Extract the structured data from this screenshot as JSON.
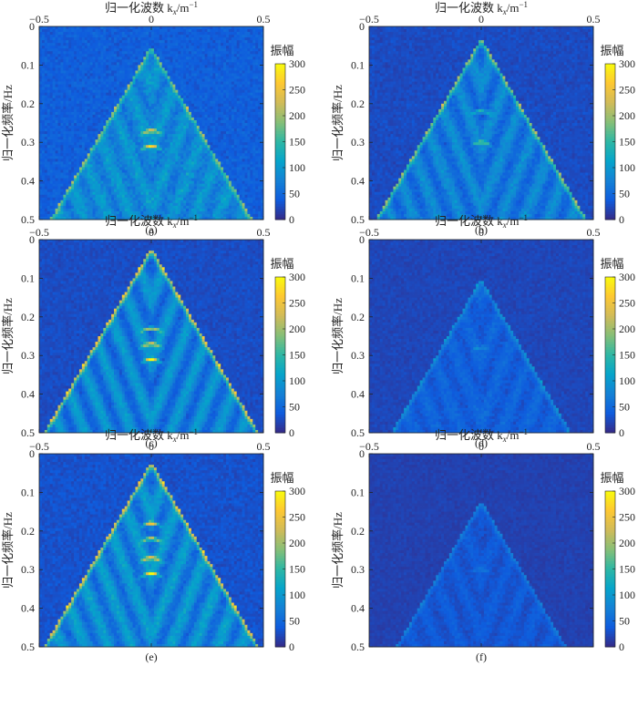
{
  "chart_data": [
    {
      "panel": "(a)",
      "type": "heatmap",
      "title": "",
      "xlabel": "归一化波数 k",
      "xlabel_sub": "x",
      "xlabel_unit": "/m",
      "xlabel_sup": "−1",
      "ylabel": "归一化频率/Hz",
      "xlim": [
        -0.5,
        0.5
      ],
      "ylim": [
        0,
        0.5
      ],
      "xticks": [
        "−0.5",
        "0",
        "0.5"
      ],
      "yticks": [
        "0",
        "0.1",
        "0.2",
        "0.3",
        "0.4",
        "0.5"
      ],
      "colorbar_label": "振幅",
      "clim": [
        0,
        300
      ],
      "cticks": [
        "0",
        "50",
        "100",
        "150",
        "200",
        "250",
        "300"
      ],
      "pattern": {
        "apex": 0.05,
        "edge_intensity": 110,
        "center_peaks": [
          0.27,
          0.31
        ],
        "center_peak_value": 240,
        "background": 35,
        "noise": 30
      }
    },
    {
      "panel": "(b)",
      "type": "heatmap",
      "title": "",
      "xlabel": "归一化波数 k",
      "xlabel_sub": "x",
      "xlabel_unit": "/m",
      "xlabel_sup": "−1",
      "ylabel": "归一化频率/Hz",
      "xlim": [
        -0.5,
        0.5
      ],
      "ylim": [
        0,
        0.5
      ],
      "xticks": [
        "−0.5",
        "0",
        "0.5"
      ],
      "yticks": [
        "0",
        "0.1",
        "0.2",
        "0.3",
        "0.4",
        "0.5"
      ],
      "colorbar_label": "振幅",
      "clim": [
        0,
        300
      ],
      "cticks": [
        "0",
        "50",
        "100",
        "150",
        "200",
        "250",
        "300"
      ],
      "pattern": {
        "apex": 0.03,
        "edge_intensity": 130,
        "center_peaks": [
          0.22,
          0.3
        ],
        "center_peak_value": 160,
        "background": 20,
        "noise": 25
      }
    },
    {
      "panel": "(c)",
      "type": "heatmap",
      "title": "",
      "xlabel": "归一化波数 k",
      "xlabel_sub": "x",
      "xlabel_unit": "/m",
      "xlabel_sup": "−1",
      "ylabel": "归一化频率/Hz",
      "xlim": [
        -0.5,
        0.5
      ],
      "ylim": [
        0,
        0.5
      ],
      "xticks": [
        "−0.5",
        "0",
        "0.5"
      ],
      "yticks": [
        "0",
        "0.1",
        "0.2",
        "0.3",
        "0.4",
        "0.5"
      ],
      "colorbar_label": "振幅",
      "clim": [
        0,
        300
      ],
      "cticks": [
        "0",
        "50",
        "100",
        "150",
        "200",
        "250",
        "300"
      ],
      "pattern": {
        "apex": 0.02,
        "edge_intensity": 180,
        "center_peaks": [
          0.23,
          0.27,
          0.31
        ],
        "center_peak_value": 250,
        "background": 22,
        "noise": 20
      }
    },
    {
      "panel": "(d)",
      "type": "heatmap",
      "title": "",
      "xlabel": "归一化波数 k",
      "xlabel_sub": "x",
      "xlabel_unit": "/m",
      "xlabel_sup": "−1",
      "ylabel": "归一化频率/Hz",
      "xlim": [
        -0.5,
        0.5
      ],
      "ylim": [
        0,
        0.5
      ],
      "xticks": [
        "−0.5",
        "0",
        "0.5"
      ],
      "yticks": [
        "0",
        "0.1",
        "0.2",
        "0.3",
        "0.4",
        "0.5"
      ],
      "colorbar_label": "振幅",
      "clim": [
        0,
        300
      ],
      "cticks": [
        "0",
        "50",
        "100",
        "150",
        "200",
        "250",
        "300"
      ],
      "pattern": {
        "apex": 0.1,
        "edge_intensity": 50,
        "center_peaks": [
          0.28
        ],
        "center_peak_value": 70,
        "background": 18,
        "noise": 15
      }
    },
    {
      "panel": "(e)",
      "type": "heatmap",
      "title": "",
      "xlabel": "归一化波数 k",
      "xlabel_sub": "x",
      "xlabel_unit": "/m",
      "xlabel_sup": "−1",
      "ylabel": "归一化频率/Hz",
      "xlim": [
        -0.5,
        0.5
      ],
      "ylim": [
        0,
        0.5
      ],
      "xticks": [
        "−0.5",
        "0",
        "0.5"
      ],
      "yticks": [
        "0",
        "0.1",
        "0.2",
        "0.3",
        "0.4",
        "0.5"
      ],
      "colorbar_label": "振幅",
      "clim": [
        0,
        300
      ],
      "cticks": [
        "0",
        "50",
        "100",
        "150",
        "200",
        "250",
        "300"
      ],
      "pattern": {
        "apex": 0.02,
        "edge_intensity": 170,
        "center_peaks": [
          0.18,
          0.22,
          0.27,
          0.31
        ],
        "center_peak_value": 270,
        "background": 25,
        "noise": 25
      }
    },
    {
      "panel": "(f)",
      "type": "heatmap",
      "title": "",
      "xlabel": "归一化波数 k",
      "xlabel_sub": "x",
      "xlabel_unit": "/m",
      "xlabel_sup": "−1",
      "ylabel": "归一化频率/Hz",
      "xlim": [
        -0.5,
        0.5
      ],
      "ylim": [
        0,
        0.5
      ],
      "xticks": [
        "−0.5",
        "0",
        "0.5"
      ],
      "yticks": [
        "0",
        "0.1",
        "0.2",
        "0.3",
        "0.4",
        "0.5"
      ],
      "colorbar_label": "振幅",
      "clim": [
        0,
        300
      ],
      "cticks": [
        "0",
        "50",
        "100",
        "150",
        "200",
        "250",
        "300"
      ],
      "pattern": {
        "apex": 0.12,
        "edge_intensity": 40,
        "center_peaks": [
          0.3
        ],
        "center_peak_value": 55,
        "background": 15,
        "noise": 12
      }
    }
  ],
  "colormap": {
    "name": "parula",
    "stops": [
      "#352a87",
      "#0f5cdd",
      "#1481d6",
      "#06a4ca",
      "#2eb7a4",
      "#87bf77",
      "#d1bb59",
      "#fec832",
      "#f9fb0e"
    ]
  }
}
